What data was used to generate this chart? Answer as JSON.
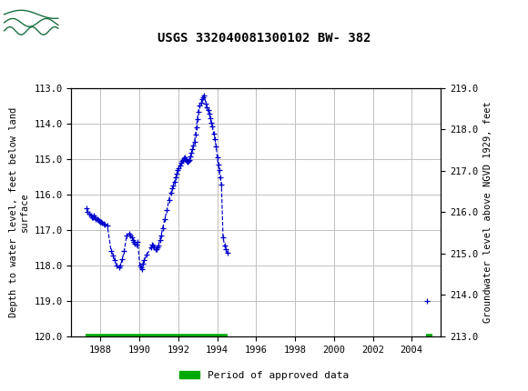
{
  "title": "USGS 332040081300102 BW- 382",
  "ylabel_left": "Depth to water level, feet below land\nsurface",
  "ylabel_right": "Groundwater level above NGVD 1929, feet",
  "ylim_left": [
    120.0,
    113.0
  ],
  "ylim_right": [
    213.0,
    219.0
  ],
  "xlim": [
    1986.5,
    2005.5
  ],
  "yticks_left": [
    113.0,
    114.0,
    115.0,
    116.0,
    117.0,
    118.0,
    119.0,
    120.0
  ],
  "yticks_right": [
    213.0,
    214.0,
    215.0,
    216.0,
    217.0,
    218.0,
    219.0
  ],
  "xticks": [
    1988,
    1990,
    1992,
    1994,
    1996,
    1998,
    2000,
    2002,
    2004
  ],
  "header_color": "#1a7040",
  "line_color": "#0000cc",
  "approved_color": "#00aa00",
  "background_color": "#ffffff",
  "plot_bg_color": "#ffffff",
  "grid_color": "#c0c0c0",
  "segment1_x": [
    1987.3,
    1987.35,
    1987.42,
    1987.5,
    1987.55,
    1987.6,
    1987.65,
    1987.7,
    1987.75,
    1987.82,
    1987.88,
    1987.93,
    1987.97,
    1988.03,
    1988.08,
    1988.15,
    1988.22,
    1988.35,
    1988.55,
    1988.65,
    1988.72,
    1988.83,
    1988.95,
    1989.03,
    1989.12,
    1989.22,
    1989.35,
    1989.48,
    1989.55,
    1989.62,
    1989.68,
    1989.73,
    1989.78,
    1989.85,
    1989.92,
    1990.02,
    1990.07,
    1990.12,
    1990.18,
    1990.25,
    1990.38,
    1990.6,
    1990.65,
    1990.7,
    1990.75,
    1990.82,
    1990.88,
    1990.93,
    1990.98,
    1991.05,
    1991.12,
    1991.2,
    1991.3,
    1991.42,
    1991.52,
    1991.62,
    1991.7,
    1991.75,
    1991.8,
    1991.87,
    1991.93,
    1991.98,
    1992.03,
    1992.08,
    1992.13,
    1992.18,
    1992.23,
    1992.28,
    1992.33,
    1992.38,
    1992.43,
    1992.48,
    1992.53,
    1992.58,
    1992.63,
    1992.68,
    1992.73,
    1992.78,
    1992.83,
    1992.88,
    1992.93,
    1992.98,
    1993.03,
    1993.08,
    1993.18,
    1993.23,
    1993.28,
    1993.33,
    1993.43,
    1993.48,
    1993.53,
    1993.58,
    1993.65,
    1993.7,
    1993.75,
    1993.82,
    1993.88,
    1993.95,
    1994.0,
    1994.05,
    1994.1,
    1994.15,
    1994.22,
    1994.3,
    1994.38,
    1994.45,
    1994.52
  ],
  "segment1_y": [
    116.4,
    116.5,
    116.55,
    116.6,
    116.65,
    116.65,
    116.6,
    116.65,
    116.7,
    116.7,
    116.72,
    116.75,
    116.78,
    116.78,
    116.8,
    116.82,
    116.85,
    116.88,
    117.6,
    117.72,
    117.85,
    118.0,
    118.05,
    118.0,
    117.82,
    117.6,
    117.15,
    117.1,
    117.15,
    117.2,
    117.3,
    117.35,
    117.4,
    117.42,
    117.35,
    118.0,
    118.05,
    118.1,
    117.95,
    117.85,
    117.7,
    117.5,
    117.42,
    117.45,
    117.5,
    117.55,
    117.55,
    117.5,
    117.45,
    117.28,
    117.15,
    116.95,
    116.7,
    116.45,
    116.15,
    115.95,
    115.82,
    115.75,
    115.65,
    115.52,
    115.42,
    115.32,
    115.25,
    115.18,
    115.12,
    115.07,
    115.02,
    114.97,
    114.95,
    115.0,
    115.05,
    115.08,
    115.05,
    115.02,
    114.92,
    114.82,
    114.72,
    114.62,
    114.52,
    114.32,
    114.12,
    113.87,
    113.68,
    113.5,
    113.42,
    113.32,
    113.25,
    113.2,
    113.45,
    113.55,
    113.62,
    113.72,
    113.85,
    113.98,
    114.08,
    114.28,
    114.45,
    114.65,
    114.95,
    115.15,
    115.32,
    115.52,
    115.72,
    117.2,
    117.45,
    117.55,
    117.65
  ],
  "segment2_x": [
    2004.8
  ],
  "segment2_y": [
    119.0
  ],
  "approved_bar1": [
    1987.25,
    1994.55
  ],
  "approved_bar2": [
    2004.75,
    2005.05
  ],
  "approved_bar_y": 120.0,
  "approved_bar_thickness": 4,
  "legend_label": "Period of approved data"
}
